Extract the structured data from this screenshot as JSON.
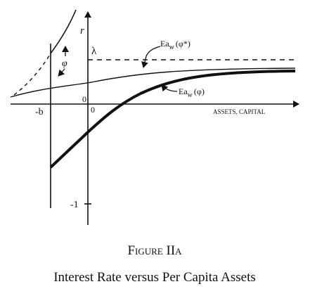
{
  "axis_labels": {
    "r": "r",
    "lambda": "λ",
    "minus_b": "-b",
    "zero_left": "0",
    "zero_right": "0",
    "minus_one": "-1",
    "phi": "φ",
    "x_axis": "ASSETS, CAPITAL"
  },
  "curves": [
    {
      "main": "Ea",
      "sub": "w",
      "arg": "(φ*)"
    },
    {
      "main": "Ea",
      "sub": "w",
      "arg": "(φ)"
    }
  ],
  "caption": {
    "figure": "Figure IIa",
    "title": "Interest Rate versus Per Capita Assets"
  }
}
